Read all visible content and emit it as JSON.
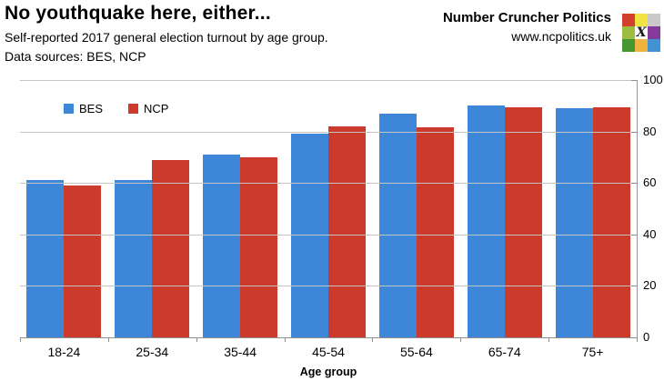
{
  "header": {
    "title": "No youthquake here, either...",
    "subtitle": "Self-reported 2017 general election turnout by age group.",
    "sources": "Data sources: BES, NCP",
    "brand_name": "Number Cruncher Politics",
    "brand_url": "www.ncpolitics.uk",
    "logo_x": "X",
    "logo_colors": [
      [
        "#d24130",
        "#f1e342",
        "#c9c9c9"
      ],
      [
        "#9cbd40",
        "#ffffff",
        "#853a9c"
      ],
      [
        "#44982f",
        "#f0b43e",
        "#4193d3"
      ]
    ]
  },
  "chart_data": {
    "type": "bar",
    "categories": [
      "18-24",
      "25-34",
      "35-44",
      "45-54",
      "55-64",
      "65-74",
      "75+"
    ],
    "series": [
      {
        "name": "BES",
        "color": "#3e86d8",
        "values": [
          61,
          61,
          71,
          79,
          87,
          90,
          89
        ]
      },
      {
        "name": "NCP",
        "color": "#cc3a2c",
        "values": [
          59,
          69,
          70,
          82,
          81.5,
          89.5,
          89.5
        ]
      }
    ],
    "title": "No youthquake here, either...",
    "xlabel": "Age group",
    "ylabel": "",
    "ylim": [
      0,
      100
    ],
    "yticks": [
      0,
      20,
      40,
      60,
      80,
      100
    ],
    "grid": true,
    "legend_position": "top-left",
    "axis_side": "right"
  },
  "colors": {
    "gridline": "#c3c3c3",
    "axis": "#8e8e8e"
  }
}
